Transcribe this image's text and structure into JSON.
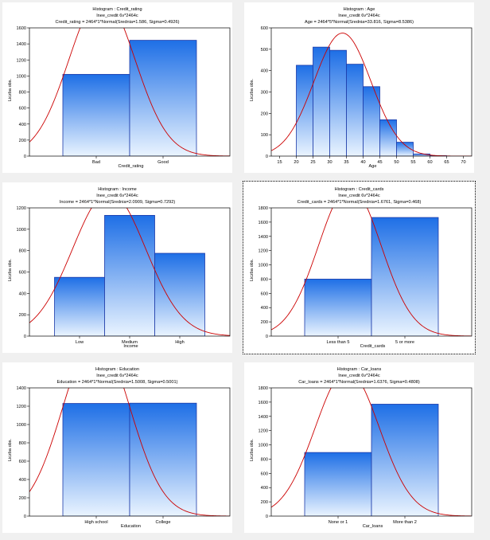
{
  "chart_data": [
    {
      "type": "bar",
      "title_lines": [
        "Histogram : Credit_rating",
        "lnee_credit 6v*2464c",
        "Credit_rating = 2464*1*Normal(Srednia=1.586, Sigma=0.4926)"
      ],
      "categories": [
        "Bad",
        "Good"
      ],
      "values": [
        1020,
        1445
      ],
      "xlabel": "Credit_rating",
      "ylabel": "Liczba obs.",
      "ylim": [
        0,
        1600
      ],
      "yticks": [
        0,
        200,
        400,
        600,
        800,
        1000,
        1200,
        1400,
        1600
      ],
      "normal_fit": {
        "mean": 1.586,
        "sigma": 0.4926,
        "n": 2464
      }
    },
    {
      "type": "bar",
      "title_lines": [
        "Histogram : Age",
        "lnee_credit 6v*2464c",
        "Age = 2464*5*Normal(Srednia=33.816, Sigma=8.5386)"
      ],
      "bin_edges": [
        20,
        25,
        30,
        35,
        40,
        45,
        50,
        55,
        60,
        65
      ],
      "values": [
        425,
        510,
        495,
        430,
        325,
        170,
        65,
        10,
        2
      ],
      "xticks": [
        15,
        20,
        25,
        30,
        35,
        40,
        45,
        50,
        55,
        60,
        65,
        70
      ],
      "xlim": [
        12.5,
        72.5
      ],
      "xlabel": "Age",
      "ylabel": "Liczba obs.",
      "ylim": [
        0,
        600
      ],
      "yticks": [
        0,
        100,
        200,
        300,
        400,
        500,
        600
      ],
      "normal_fit": {
        "mean": 33.816,
        "sigma": 8.5386,
        "n": 2464,
        "binwidth": 5
      }
    },
    {
      "type": "bar",
      "title_lines": [
        "Histogram : Income",
        "lnee_credit 6v*2464c",
        "Income = 2464*1*Normal(Srednia=2.0909, Sigma=0.7292)"
      ],
      "categories": [
        "Low",
        "Medium",
        "High"
      ],
      "values": [
        550,
        1130,
        775
      ],
      "xlabel": "Income",
      "ylabel": "Liczba obs.",
      "ylim": [
        0,
        1200
      ],
      "yticks": [
        0,
        200,
        400,
        600,
        800,
        1000,
        1200
      ],
      "normal_fit": {
        "mean": 2.0909,
        "sigma": 0.7292,
        "n": 2464
      }
    },
    {
      "type": "bar",
      "title_lines": [
        "Histogram : Credit_cards",
        "lnee_credit 6v*2464c",
        "Credit_cards = 2464*1*Normal(Srednia=1.6761, Sigma=0.468)"
      ],
      "categories": [
        "Less than 5",
        "5 or more"
      ],
      "values": [
        800,
        1665
      ],
      "xlabel": "Credit_cards",
      "ylabel": "Liczba obs.",
      "ylim": [
        0,
        1800
      ],
      "yticks": [
        0,
        200,
        400,
        600,
        800,
        1000,
        1200,
        1400,
        1600,
        1800
      ],
      "normal_fit": {
        "mean": 1.6761,
        "sigma": 0.468,
        "n": 2464
      }
    },
    {
      "type": "bar",
      "title_lines": [
        "Histogram : Education",
        "lnee_credit 6v*2464c",
        "Education = 2464*1*Normal(Srednia=1.5008, Sigma=0.5001)"
      ],
      "categories": [
        "High school",
        "College"
      ],
      "values": [
        1230,
        1233
      ],
      "xlabel": "Education",
      "ylabel": "Liczba obs.",
      "ylim": [
        0,
        1400
      ],
      "yticks": [
        0,
        200,
        400,
        600,
        800,
        1000,
        1200,
        1400
      ],
      "normal_fit": {
        "mean": 1.5008,
        "sigma": 0.5001,
        "n": 2464
      }
    },
    {
      "type": "bar",
      "title_lines": [
        "Histogram : Car_loans",
        "lnee_credit 6v*2464c",
        "Car_loans = 2464*1*Normal(Srednia=1.6376, Sigma=0.4808)"
      ],
      "categories": [
        "None or 1",
        "More than 2"
      ],
      "values": [
        893,
        1571
      ],
      "xlabel": "Car_loans",
      "ylabel": "Liczba obs.",
      "ylim": [
        0,
        1800
      ],
      "yticks": [
        0,
        200,
        400,
        600,
        800,
        1000,
        1200,
        1400,
        1600,
        1800
      ],
      "normal_fit": {
        "mean": 1.6376,
        "sigma": 0.4808,
        "n": 2464
      }
    }
  ],
  "colors": {
    "bar_top": "#1e6fe6",
    "bar_bottom": "#eaf4ff",
    "bar_stroke": "#1c3aa8",
    "curve": "#cc0000",
    "panel_bg": "#ffffff",
    "page_bg": "#f0f0f0"
  }
}
